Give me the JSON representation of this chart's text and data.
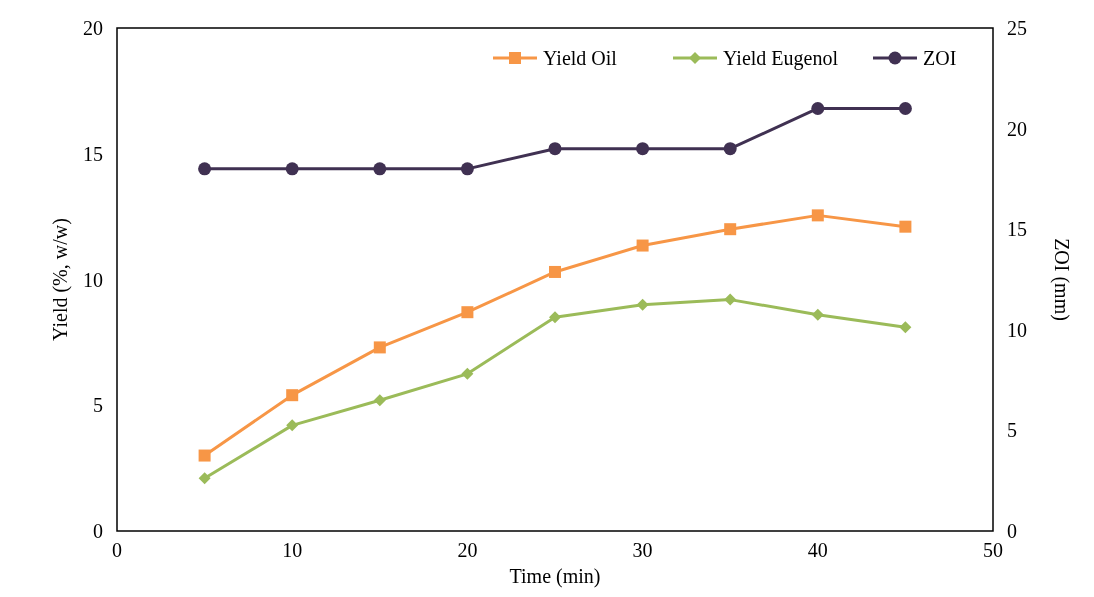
{
  "chart_data": {
    "type": "line",
    "xlabel": "Time (min)",
    "ylabel": "Yield (%, w/w)",
    "y2label": "ZOI (mm)",
    "x": [
      5,
      10,
      15,
      20,
      25,
      30,
      35,
      40,
      45
    ],
    "series": [
      {
        "name": "Yield Oil",
        "color": "#f79646",
        "marker": "square",
        "values": [
          3.0,
          5.4,
          7.3,
          8.7,
          10.3,
          11.35,
          12.0,
          12.55,
          12.1
        ]
      },
      {
        "name": "Yield Eugenol",
        "color": "#9bbb59",
        "marker": "diamond",
        "values": [
          2.1,
          4.2,
          5.2,
          6.25,
          8.5,
          9.0,
          9.2,
          8.6,
          8.1
        ]
      },
      {
        "name": "ZOI",
        "color": "#403152",
        "marker": "circle",
        "axis": "y2",
        "values": [
          18,
          18,
          18,
          18,
          19,
          19,
          19,
          21,
          21
        ]
      }
    ],
    "xlim": [
      0,
      50
    ],
    "xticks": [
      0,
      10,
      20,
      30,
      40,
      50
    ],
    "ylim": [
      0,
      20
    ],
    "yticks": [
      0,
      5,
      10,
      15,
      20
    ],
    "y2lim": [
      0,
      25
    ],
    "y2ticks": [
      0,
      5,
      10,
      15,
      20,
      25
    ],
    "grid": false,
    "legend": "top right"
  }
}
